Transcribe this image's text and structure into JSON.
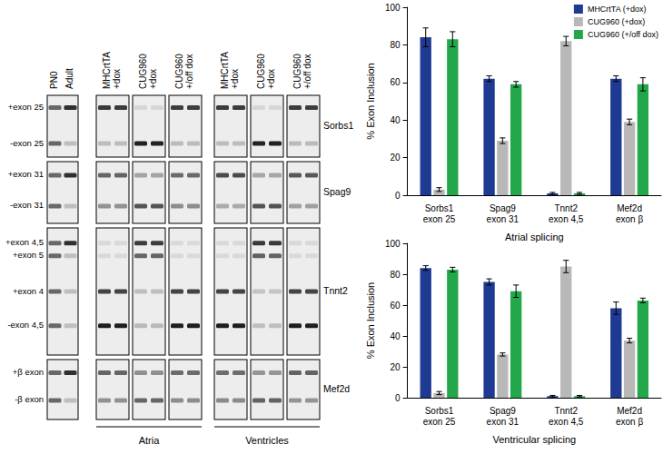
{
  "gels": {
    "reference_lanes": [
      "PN0",
      "Adult"
    ],
    "conditions": [
      [
        "MHCrtTA",
        "+dox"
      ],
      [
        "CUG960",
        "+dox"
      ],
      [
        "CUG960",
        "+/off dox"
      ]
    ],
    "groups": [
      "Atria",
      "Ventricles"
    ],
    "rows": [
      {
        "gene": "Sorbs1",
        "bands": [
          "+exon 25",
          "-exon 25"
        ]
      },
      {
        "gene": "Spag9",
        "bands": [
          "+exon 31",
          "-exon 31"
        ]
      },
      {
        "gene": "Tnnt2",
        "bands": [
          "+exon 4,5",
          "+exon 5",
          "+exon 4",
          "-exon 4,5"
        ]
      },
      {
        "gene": "Mef2d",
        "bands": [
          "+β exon",
          "-β exon"
        ]
      }
    ]
  },
  "chart_data": [
    {
      "type": "bar",
      "x_label": "Atrial splicing",
      "y_label": "% Exon Inclusion",
      "categories": [
        "Sorbs1\nexon 25",
        "Spag9\nexon 31",
        "Tnnt2\nexon 4,5",
        "Mef2d\nexon β"
      ],
      "series": [
        {
          "name": "MHCrtTA (+dox)",
          "color": "#1f3a93",
          "values": [
            84,
            62,
            1,
            62
          ],
          "errors": [
            5,
            1.5,
            0.5,
            1.5
          ]
        },
        {
          "name": "CUG960 (+dox)",
          "color": "#b8b8b8",
          "values": [
            3,
            29,
            82,
            39
          ],
          "errors": [
            1,
            1.5,
            2.5,
            1.5
          ]
        },
        {
          "name": "CUG960 (+/off dox)",
          "color": "#22a84a",
          "values": [
            83,
            59,
            1,
            59
          ],
          "errors": [
            4,
            1.5,
            0.5,
            3.5
          ]
        }
      ],
      "ylim": [
        0,
        100
      ],
      "yticks": [
        0,
        20,
        40,
        60,
        80,
        100
      ],
      "grid": false,
      "legend": "upper right"
    },
    {
      "type": "bar",
      "x_label": "Ventricular splicing",
      "y_label": "% Exon Inclusion",
      "categories": [
        "Sorbs1\nexon 25",
        "Spag9\nexon 31",
        "Tnnt2\nexon 4,5",
        "Mef2d\nexon β"
      ],
      "series": [
        {
          "name": "MHCrtTA (+dox)",
          "color": "#1f3a93",
          "values": [
            84,
            75,
            1,
            58
          ],
          "errors": [
            1.5,
            2,
            0.5,
            4
          ]
        },
        {
          "name": "CUG960 (+dox)",
          "color": "#b8b8b8",
          "values": [
            3,
            28,
            85,
            37
          ],
          "errors": [
            1,
            1,
            4,
            1.5
          ]
        },
        {
          "name": "CUG960 (+/off dox)",
          "color": "#22a84a",
          "values": [
            83,
            69,
            1,
            63
          ],
          "errors": [
            1.5,
            4,
            0.5,
            1.5
          ]
        }
      ],
      "ylim": [
        0,
        100
      ],
      "yticks": [
        0,
        20,
        40,
        60,
        80,
        100
      ],
      "grid": false
    }
  ]
}
